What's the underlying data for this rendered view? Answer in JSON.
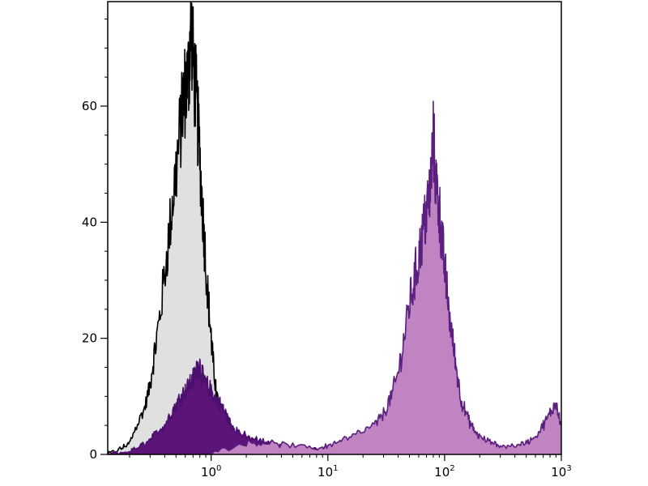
{
  "chart_data": {
    "type": "area",
    "title": "",
    "xlabel": "",
    "ylabel": "",
    "xscale": "log",
    "xlim": [
      0.13,
      1000
    ],
    "ylim": [
      0,
      78
    ],
    "grid": false,
    "x_ticks": [
      {
        "base": "10",
        "exp": "0",
        "value": 1
      },
      {
        "base": "10",
        "exp": "1",
        "value": 10
      },
      {
        "base": "10",
        "exp": "2",
        "value": 100
      },
      {
        "base": "10",
        "exp": "3",
        "value": 1000
      }
    ],
    "y_ticks": [
      {
        "label": "0",
        "value": 0
      },
      {
        "label": "20",
        "value": 20
      },
      {
        "label": "40",
        "value": 40
      },
      {
        "label": "60",
        "value": 60
      }
    ],
    "series": [
      {
        "fill": "#e0e0e0",
        "stroke": "#000000",
        "x": [
          0.13,
          0.17,
          0.2,
          0.23,
          0.27,
          0.3,
          0.33,
          0.37,
          0.42,
          0.47,
          0.52,
          0.57,
          0.6,
          0.64,
          0.67,
          0.7,
          0.74,
          0.78,
          0.83,
          0.88,
          0.95,
          1.0,
          1.05,
          1.1,
          1.2,
          1.3,
          1.45,
          1.6,
          1.8,
          2.0,
          2.5,
          3.0
        ],
        "y": [
          0,
          1,
          2,
          5,
          8,
          12,
          18,
          25,
          35,
          44,
          52,
          60,
          63,
          65,
          75,
          68,
          62,
          55,
          45,
          36,
          26,
          20,
          15,
          11,
          7,
          4,
          2,
          1,
          0.5,
          0.3,
          0.1,
          0
        ]
      },
      {
        "fill": "#5c1478",
        "stroke": "#4b0f6e",
        "x": [
          0.13,
          0.2,
          0.25,
          0.3,
          0.35,
          0.4,
          0.45,
          0.5,
          0.55,
          0.6,
          0.65,
          0.7,
          0.75,
          0.8,
          0.85,
          0.9,
          1.0,
          1.1,
          1.2,
          1.3,
          1.4,
          1.5,
          1.7,
          2.0,
          2.5,
          3.0,
          4.0,
          5.0,
          7.0,
          10.0,
          15.0,
          20.0
        ],
        "y": [
          0,
          0.5,
          1.5,
          2.5,
          4,
          5,
          7,
          8.5,
          10,
          11,
          12,
          13,
          14.5,
          15.5,
          13,
          12,
          11,
          9.5,
          8.5,
          7.5,
          6,
          5,
          4,
          3,
          2.5,
          2,
          1.5,
          1,
          1,
          0.8,
          0.5,
          0.3
        ]
      },
      {
        "fill": "#c084c3",
        "stroke": "#5a1f7f",
        "x": [
          1.0,
          2.0,
          3.0,
          5.0,
          8.0,
          10.0,
          13.0,
          18.0,
          25.0,
          30.0,
          35.0,
          40.0,
          45.0,
          50.0,
          55.0,
          60.0,
          65.0,
          70.0,
          75.0,
          80.0,
          85.0,
          90.0,
          95.0,
          100.0,
          110.0,
          120.0,
          130.0,
          140.0,
          160.0,
          180.0,
          200.0,
          250.0,
          300.0,
          400.0,
          500.0,
          600.0,
          700.0,
          800.0,
          900.0,
          1000.0
        ],
        "y": [
          0.3,
          2,
          2,
          1.5,
          1,
          1.5,
          2.5,
          3.5,
          5,
          7,
          10,
          14,
          20,
          26,
          30,
          34,
          38,
          42,
          45,
          54,
          46,
          42,
          37,
          32,
          24,
          18,
          13,
          9,
          6,
          4,
          3,
          2,
          1.5,
          1.5,
          2,
          3,
          5,
          7,
          9,
          5
        ]
      }
    ]
  }
}
